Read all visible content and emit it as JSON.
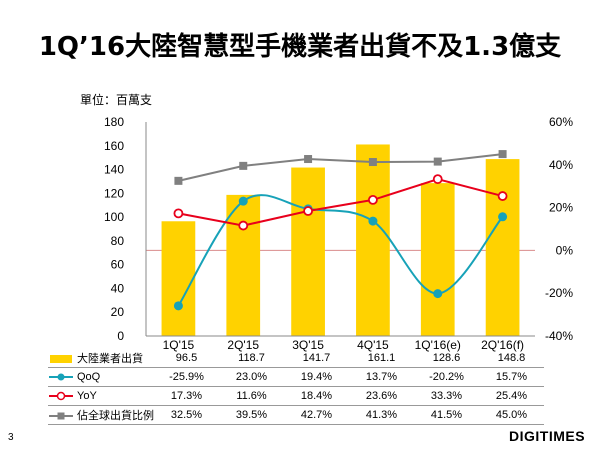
{
  "title": "1Q’16大陸智慧型手機業者出貨不及1.3億支",
  "unit_label": "單位：百萬支",
  "page_number": "3",
  "brand": "DIGITIMES",
  "chart_data": {
    "type": "bar+line",
    "title": "1Q’16大陸智慧型手機業者出貨不及1.3億支",
    "categories": [
      "1Q'15",
      "2Q'15",
      "3Q'15",
      "4Q'15",
      "1Q'16(e)",
      "2Q'16(f)"
    ],
    "left_axis": {
      "label": "單位：百萬支",
      "min": 0,
      "max": 180,
      "step": 20,
      "ticks": [
        "0",
        "20",
        "40",
        "60",
        "80",
        "100",
        "120",
        "140",
        "160",
        "180"
      ]
    },
    "right_axis": {
      "min": -40,
      "max": 60,
      "step": 20,
      "ticks": [
        "-40%",
        "-20%",
        "0%",
        "20%",
        "40%",
        "60%"
      ]
    },
    "series": [
      {
        "name": "大陸業者出貨",
        "type": "bar",
        "axis": "left",
        "color": "#FFD200",
        "values": [
          96.5,
          118.7,
          141.7,
          161.1,
          128.6,
          148.8
        ],
        "labels": [
          "96.5",
          "118.7",
          "141.7",
          "161.1",
          "128.6",
          "148.8"
        ]
      },
      {
        "name": "QoQ",
        "type": "line",
        "smooth": true,
        "axis": "right",
        "color": "#17A2B8",
        "marker": "circle",
        "values": [
          -25.9,
          23.0,
          19.4,
          13.7,
          -20.2,
          15.7
        ],
        "labels": [
          "-25.9%",
          "23.0%",
          "19.4%",
          "13.7%",
          "-20.2%",
          "15.7%"
        ]
      },
      {
        "name": "YoY",
        "type": "line",
        "axis": "right",
        "color": "#E8001C",
        "marker": "open-circle",
        "values": [
          17.3,
          11.6,
          18.4,
          23.6,
          33.3,
          25.4
        ],
        "labels": [
          "17.3%",
          "11.6%",
          "18.4%",
          "23.6%",
          "33.3%",
          "25.4%"
        ]
      },
      {
        "name": "佔全球出貨比例",
        "type": "line",
        "axis": "right",
        "color": "#808080",
        "marker": "square",
        "values": [
          32.5,
          39.5,
          42.7,
          41.3,
          41.5,
          45.0
        ],
        "labels": [
          "32.5%",
          "39.5%",
          "42.7%",
          "41.3%",
          "41.5%",
          "45.0%"
        ]
      }
    ]
  }
}
